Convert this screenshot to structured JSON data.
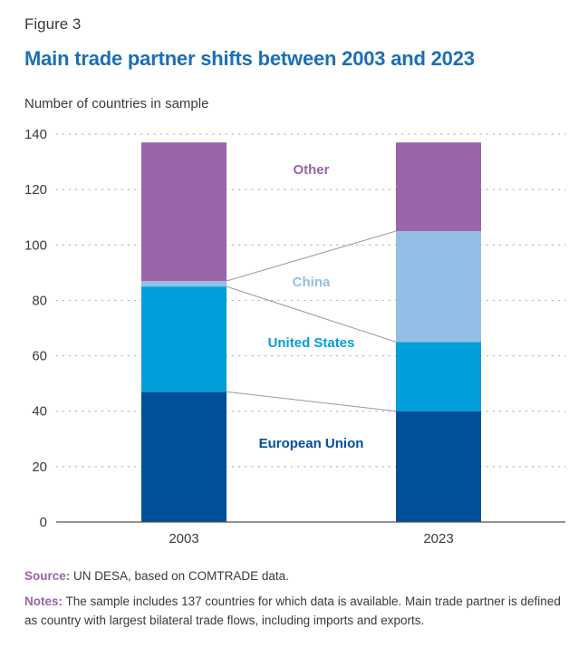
{
  "figure_label": "Figure 3",
  "title": "Main trade partner shifts between 2003 and 2023",
  "y_axis_label": "Number of countries in sample",
  "source": {
    "label": "Source:",
    "text": "UN DESA, based on COMTRADE data."
  },
  "notes": {
    "label": "Notes:",
    "text": "The sample includes 137 countries for which data is available. Main trade partner is defined as country with largest bilateral trade flows, including imports and exports."
  },
  "chart_data": {
    "type": "bar",
    "stacked": true,
    "categories": [
      "2003",
      "2023"
    ],
    "series": [
      {
        "name": "European Union",
        "values": [
          47,
          40
        ],
        "color": "#004f9a",
        "label_color": "#004f9a"
      },
      {
        "name": "United States",
        "values": [
          38,
          25
        ],
        "color": "#009fdb",
        "label_color": "#009fdb"
      },
      {
        "name": "China",
        "values": [
          2,
          40
        ],
        "color": "#93bfe6",
        "label_color": "#93bfe6"
      },
      {
        "name": "Other",
        "values": [
          50,
          32
        ],
        "color": "#9c64a9",
        "label_color": "#9c64a9"
      }
    ],
    "title": "Main trade partner shifts between 2003 and 2023",
    "xlabel": "",
    "ylabel": "Number of countries in sample",
    "ylim": [
      0,
      140
    ],
    "yticks": [
      0,
      20,
      40,
      60,
      80,
      100,
      120,
      140
    ],
    "grid": "dotted horizontal",
    "connector_color": "#9a9a9a"
  }
}
